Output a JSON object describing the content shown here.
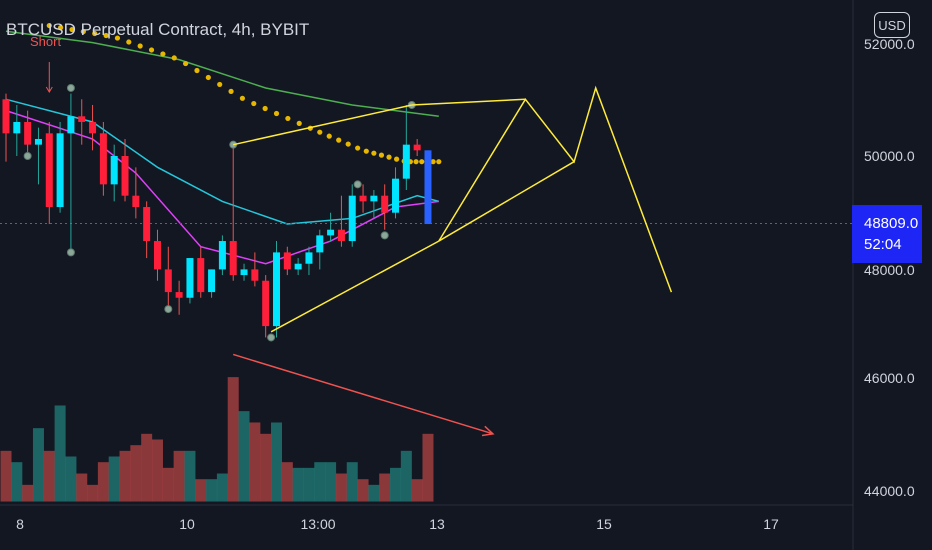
{
  "chart_data": {
    "type": "candlestick",
    "title": "BTCUSD Perpetual Contract, 4h, BYBIT",
    "currency": "USD",
    "current_price": "48809.0",
    "countdown": "52:04",
    "signal_label": "Short",
    "y_ticks": [
      "52000.0",
      "50000.0",
      "48000.0",
      "46000.0",
      "44000.0"
    ],
    "ylim": [
      43800,
      53000
    ],
    "x_ticks": [
      "8",
      "10",
      "13:00",
      "13",
      "15",
      "17"
    ],
    "colors": {
      "up": "#26a69a",
      "down": "#ef5350",
      "drawing": "#ffeb3b",
      "arrow": "#ef5350",
      "price_line": "#2962ff",
      "ema_slow": "#4caf50",
      "ema_fast": "#26c6da",
      "ema_pink": "#e040fb",
      "dots": "#e6b600"
    },
    "candles": [
      {
        "o": 51000,
        "h": 51100,
        "l": 49900,
        "c": 50400
      },
      {
        "o": 50400,
        "h": 50900,
        "l": 50000,
        "c": 50600
      },
      {
        "o": 50600,
        "h": 50800,
        "l": 50000,
        "c": 50200
      },
      {
        "o": 50200,
        "h": 50500,
        "l": 49500,
        "c": 50300
      },
      {
        "o": 50400,
        "h": 50600,
        "l": 48800,
        "c": 49100
      },
      {
        "o": 49100,
        "h": 50600,
        "l": 49000,
        "c": 50400
      },
      {
        "o": 50400,
        "h": 51100,
        "l": 48300,
        "c": 50700
      },
      {
        "o": 50700,
        "h": 51000,
        "l": 50200,
        "c": 50600
      },
      {
        "o": 50600,
        "h": 50900,
        "l": 50100,
        "c": 50400
      },
      {
        "o": 50400,
        "h": 50600,
        "l": 49300,
        "c": 49500
      },
      {
        "o": 49500,
        "h": 50200,
        "l": 49200,
        "c": 50000
      },
      {
        "o": 50000,
        "h": 50300,
        "l": 49200,
        "c": 49300
      },
      {
        "o": 49300,
        "h": 49800,
        "l": 48900,
        "c": 49100
      },
      {
        "o": 49100,
        "h": 49200,
        "l": 48200,
        "c": 48500
      },
      {
        "o": 48500,
        "h": 48700,
        "l": 47800,
        "c": 48000
      },
      {
        "o": 48000,
        "h": 48400,
        "l": 47300,
        "c": 47600
      },
      {
        "o": 47600,
        "h": 47800,
        "l": 47200,
        "c": 47500
      },
      {
        "o": 47500,
        "h": 48200,
        "l": 47400,
        "c": 48200
      },
      {
        "o": 48200,
        "h": 48400,
        "l": 47500,
        "c": 47600
      },
      {
        "o": 47600,
        "h": 48000,
        "l": 47500,
        "c": 48000
      },
      {
        "o": 48000,
        "h": 48600,
        "l": 47900,
        "c": 48500
      },
      {
        "o": 48500,
        "h": 50200,
        "l": 47800,
        "c": 47900
      },
      {
        "o": 47900,
        "h": 48100,
        "l": 47800,
        "c": 48000
      },
      {
        "o": 48000,
        "h": 48300,
        "l": 47700,
        "c": 47800
      },
      {
        "o": 47800,
        "h": 47900,
        "l": 46800,
        "c": 47000
      },
      {
        "o": 47000,
        "h": 48500,
        "l": 46800,
        "c": 48300
      },
      {
        "o": 48300,
        "h": 48400,
        "l": 47900,
        "c": 48000
      },
      {
        "o": 48000,
        "h": 48200,
        "l": 47900,
        "c": 48100
      },
      {
        "o": 48100,
        "h": 48400,
        "l": 47900,
        "c": 48300
      },
      {
        "o": 48300,
        "h": 48700,
        "l": 48000,
        "c": 48600
      },
      {
        "o": 48600,
        "h": 49000,
        "l": 48500,
        "c": 48700
      },
      {
        "o": 48700,
        "h": 49300,
        "l": 48400,
        "c": 48500
      },
      {
        "o": 48500,
        "h": 49500,
        "l": 48400,
        "c": 49300
      },
      {
        "o": 49300,
        "h": 49500,
        "l": 49000,
        "c": 49200
      },
      {
        "o": 49200,
        "h": 49400,
        "l": 48900,
        "c": 49300
      },
      {
        "o": 49300,
        "h": 49500,
        "l": 48700,
        "c": 49000
      },
      {
        "o": 49000,
        "h": 49800,
        "l": 48900,
        "c": 49600
      },
      {
        "o": 49600,
        "h": 50900,
        "l": 49400,
        "c": 50200
      },
      {
        "o": 50200,
        "h": 50300,
        "l": 50000,
        "c": 50100
      },
      {
        "o": 50100,
        "h": 50100,
        "l": 48800,
        "c": 48800
      }
    ],
    "volumes": [
      44800,
      44600,
      44200,
      45200,
      44800,
      45600,
      44700,
      44400,
      44200,
      44600,
      44700,
      44800,
      44900,
      45100,
      45000,
      44500,
      44800,
      44800,
      44300,
      44300,
      44400,
      46100,
      45500,
      45300,
      45100,
      45300,
      44600,
      44500,
      44500,
      44600,
      44600,
      44400,
      44600,
      44300,
      44200,
      44400,
      44500,
      44800,
      44300,
      45100
    ],
    "wedge_upper": [
      [
        21,
        50200
      ],
      [
        37.5,
        50900
      ]
    ],
    "wedge_lower": [
      [
        24.5,
        46900
      ],
      [
        40,
        48500
      ]
    ],
    "projection": [
      [
        40,
        48500
      ],
      [
        48,
        51000
      ],
      [
        52.5,
        49900
      ],
      [
        54.5,
        51200
      ],
      [
        61.5,
        47600
      ]
    ],
    "divergence_arrow": [
      [
        21,
        46500
      ],
      [
        45,
        45100
      ]
    ],
    "signal_markers": [
      [
        2,
        50000
      ],
      [
        6,
        48300
      ],
      [
        6,
        51200
      ],
      [
        15,
        47300
      ],
      [
        24.5,
        46800
      ],
      [
        32.5,
        49500
      ],
      [
        35,
        48600
      ],
      [
        37.5,
        50900
      ],
      [
        21,
        50200
      ]
    ],
    "dotted_curve": [
      [
        4,
        52300
      ],
      [
        10,
        52100
      ],
      [
        16,
        51700
      ],
      [
        22,
        51000
      ],
      [
        28,
        50500
      ],
      [
        33,
        50100
      ],
      [
        37,
        49900
      ],
      [
        40,
        49900
      ]
    ],
    "ema_slow": [
      [
        0,
        52200
      ],
      [
        8,
        52000
      ],
      [
        16,
        51700
      ],
      [
        24,
        51200
      ],
      [
        32,
        50900
      ],
      [
        40,
        50700
      ]
    ],
    "ema_fast": [
      [
        0,
        51000
      ],
      [
        8,
        50600
      ],
      [
        14,
        49800
      ],
      [
        20,
        49200
      ],
      [
        26,
        48800
      ],
      [
        32,
        48900
      ],
      [
        38,
        49300
      ],
      [
        40,
        49200
      ]
    ],
    "ema_pink": [
      [
        0,
        50800
      ],
      [
        8,
        50300
      ],
      [
        12,
        49700
      ],
      [
        18,
        48400
      ],
      [
        24,
        48100
      ],
      [
        30,
        48500
      ],
      [
        36,
        49100
      ],
      [
        40,
        49200
      ]
    ]
  }
}
